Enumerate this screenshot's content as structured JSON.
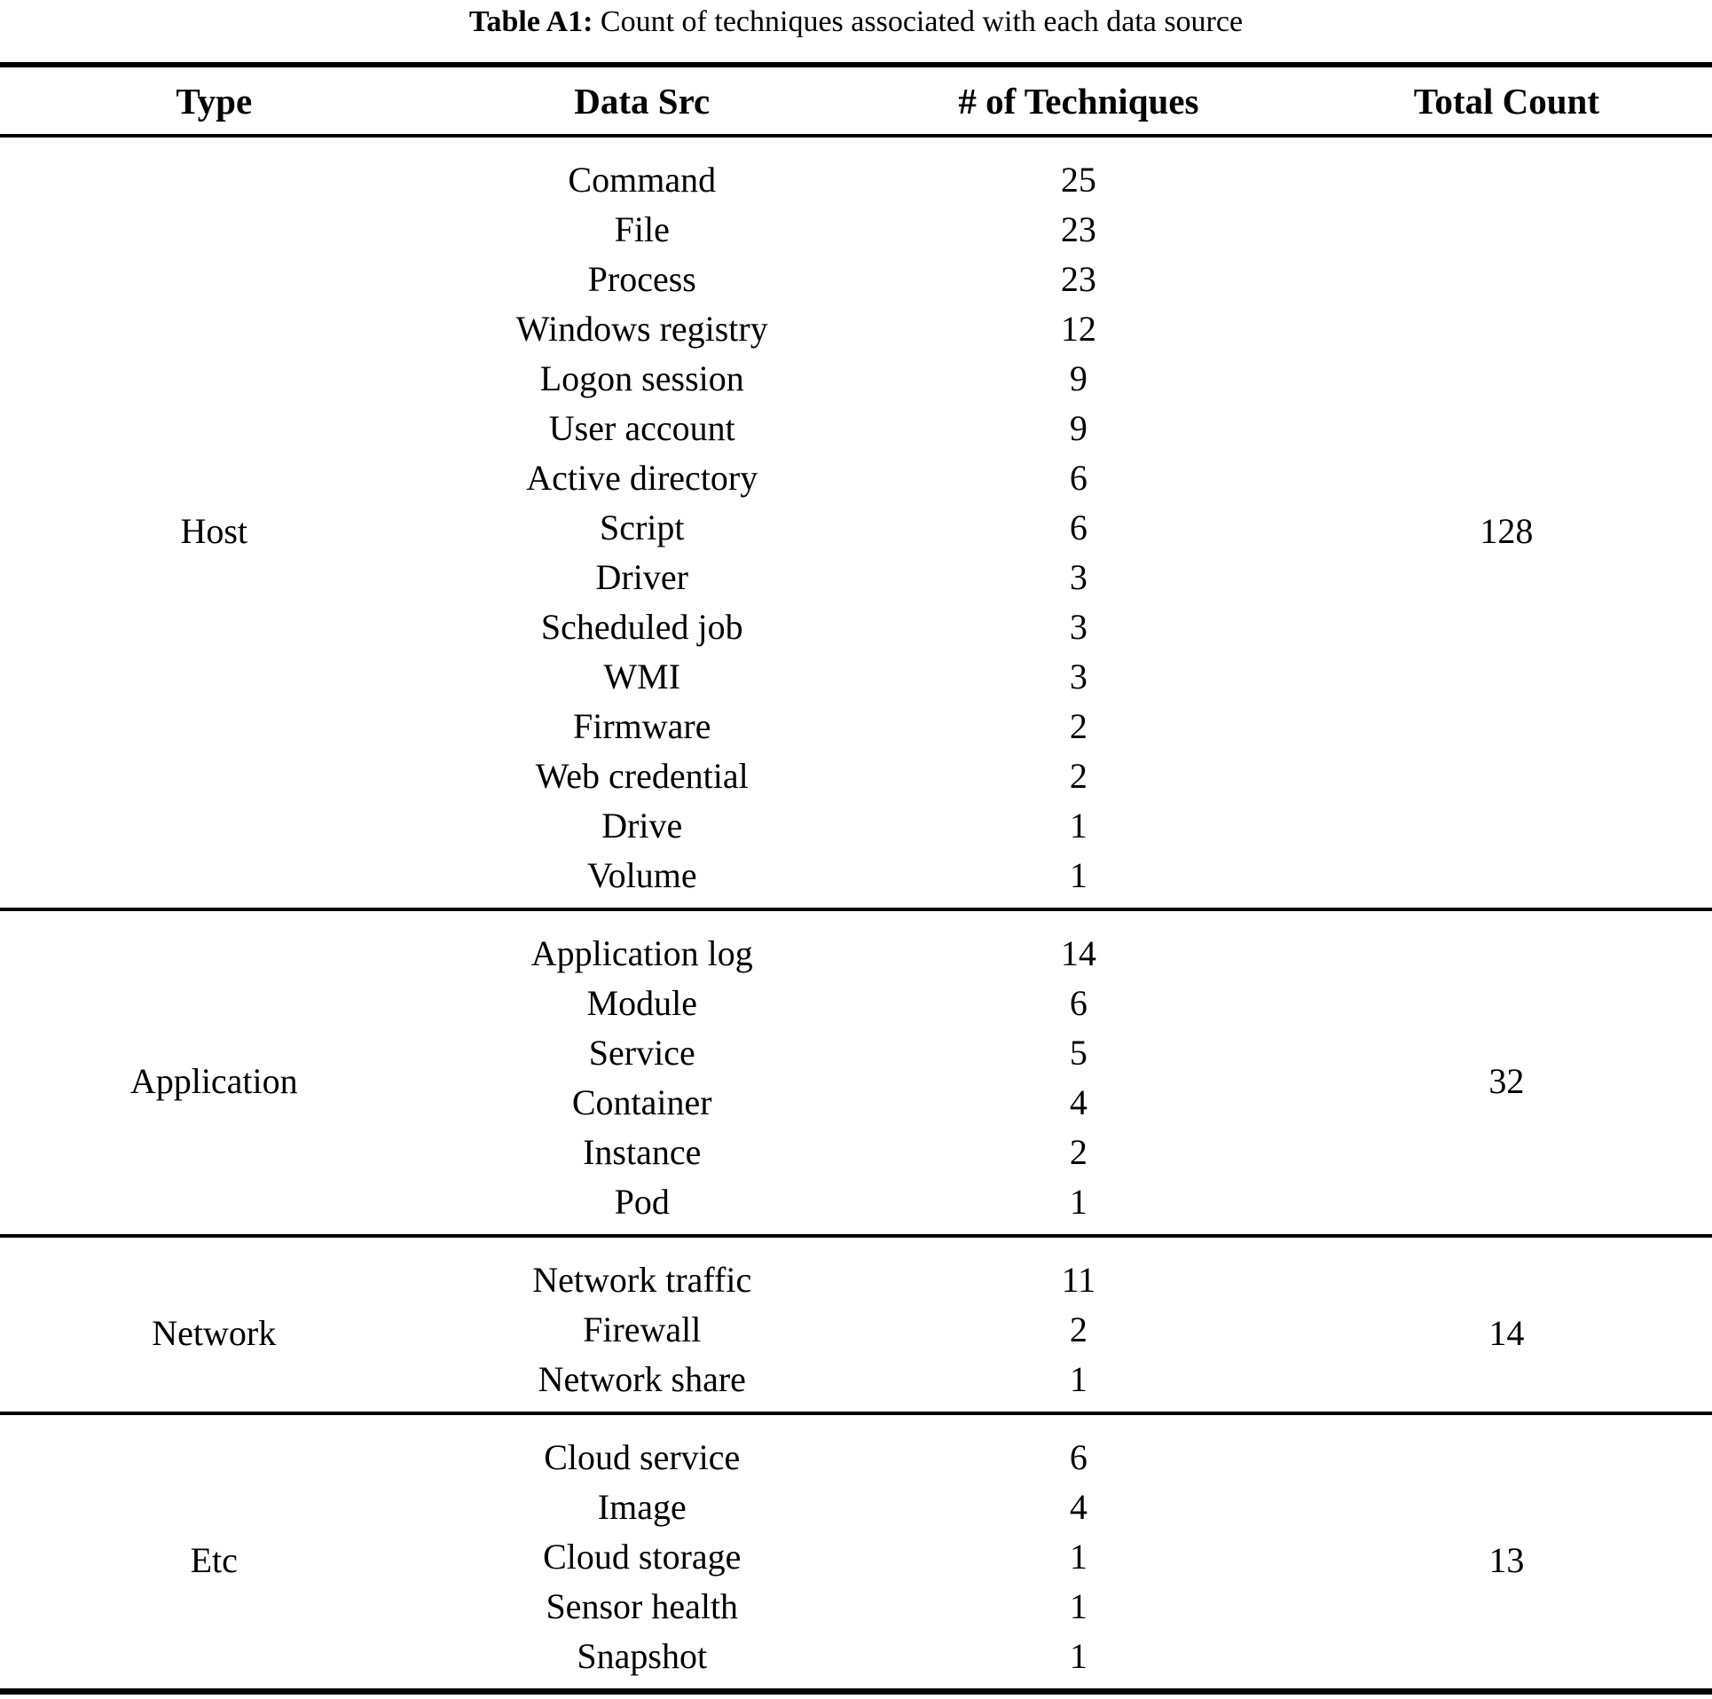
{
  "title": {
    "label": "Table A1:",
    "text": "Count of techniques associated with each data source"
  },
  "columns": [
    "Type",
    "Data Src",
    "# of Techniques",
    "Total Count"
  ],
  "sections": [
    {
      "type": "Host",
      "total": 128,
      "rows": [
        [
          "Command",
          25
        ],
        [
          "File",
          23
        ],
        [
          "Process",
          23
        ],
        [
          "Windows registry",
          12
        ],
        [
          "Logon session",
          9
        ],
        [
          "User account",
          9
        ],
        [
          "Active directory",
          6
        ],
        [
          "Script",
          6
        ],
        [
          "Driver",
          3
        ],
        [
          "Scheduled job",
          3
        ],
        [
          "WMI",
          3
        ],
        [
          "Firmware",
          2
        ],
        [
          "Web credential",
          2
        ],
        [
          "Drive",
          1
        ],
        [
          "Volume",
          1
        ]
      ]
    },
    {
      "type": "Application",
      "total": 32,
      "rows": [
        [
          "Application log",
          14
        ],
        [
          "Module",
          6
        ],
        [
          "Service",
          5
        ],
        [
          "Container",
          4
        ],
        [
          "Instance",
          2
        ],
        [
          "Pod",
          1
        ]
      ]
    },
    {
      "type": "Network",
      "total": 14,
      "rows": [
        [
          "Network traffic",
          11
        ],
        [
          "Firewall",
          2
        ],
        [
          "Network share",
          1
        ]
      ]
    },
    {
      "type": "Etc",
      "total": 13,
      "rows": [
        [
          "Cloud service",
          6
        ],
        [
          "Image",
          4
        ],
        [
          "Cloud storage",
          1
        ],
        [
          "Sensor health",
          1
        ],
        [
          "Snapshot",
          1
        ]
      ]
    }
  ],
  "colors": {
    "background": "#ffffff",
    "text": "#000000",
    "rule": "#000000"
  }
}
